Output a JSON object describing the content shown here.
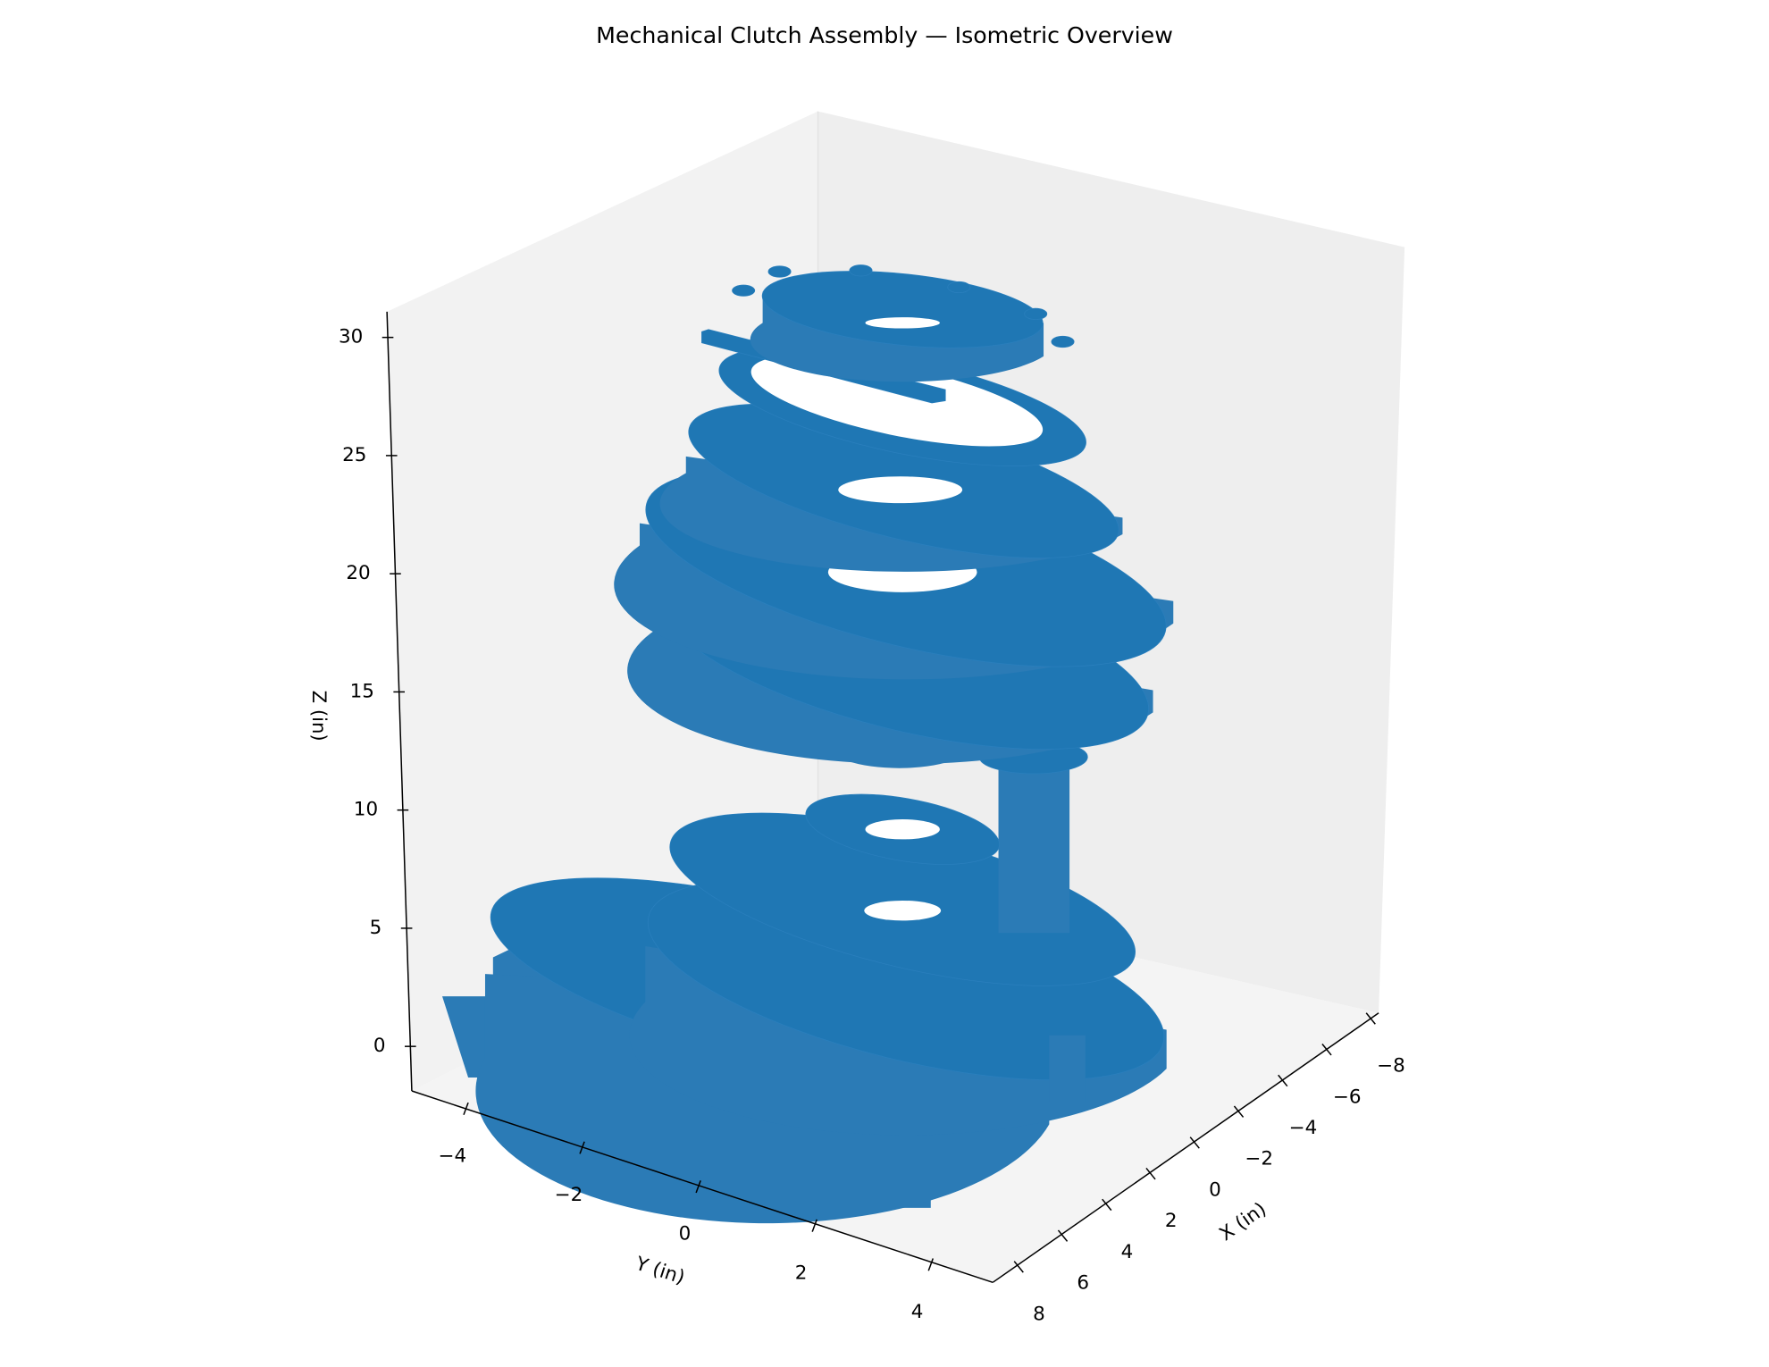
{
  "chart_data": {
    "type": "mesh3d",
    "title": "Mechanical Clutch Assembly — Isometric Overview",
    "xlabel": "X (in)",
    "ylabel": "Y (in)",
    "zlabel": "Z (in)",
    "color": "#1f77b4",
    "xticks": [
      8,
      6,
      4,
      2,
      0,
      {
        "value": -2,
        "label": "−2"
      },
      {
        "value": -4,
        "label": "−4"
      },
      {
        "value": -6,
        "label": "−6"
      },
      {
        "value": -8,
        "label": "−8"
      }
    ],
    "yticks": [
      {
        "value": -4,
        "label": "−4"
      },
      {
        "value": -2,
        "label": "−2"
      },
      0,
      2,
      4
    ],
    "zticks": [
      0,
      5,
      10,
      15,
      20,
      25,
      30
    ]
  }
}
